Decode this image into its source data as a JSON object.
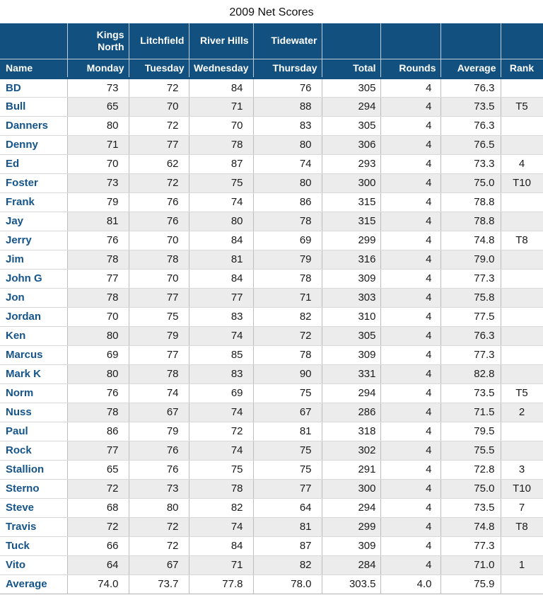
{
  "colors": {
    "header_bg": "#11507f",
    "header_text": "#ffffff",
    "name_text": "#14548a",
    "stripe": "#ececec",
    "grid_line": "#bcbcbc",
    "row_line": "#d8d8d8",
    "title_text": "#111111"
  },
  "chart_data": {
    "type": "table",
    "title": "2009 Net Scores",
    "course_header": [
      "",
      "Kings North",
      "Litchfield",
      "River Hills",
      "Tidewater",
      "",
      "",
      "",
      ""
    ],
    "columns": [
      "Name",
      "Monday",
      "Tuesday",
      "Wednesday",
      "Thursday",
      "Total",
      "Rounds",
      "Average",
      "Rank"
    ],
    "rows": [
      {
        "name": "BD",
        "scores": [
          73,
          72,
          84,
          76
        ],
        "total": 305,
        "rounds": 4,
        "average": "76.3",
        "rank": ""
      },
      {
        "name": "Bull",
        "scores": [
          65,
          70,
          71,
          88
        ],
        "total": 294,
        "rounds": 4,
        "average": "73.5",
        "rank": "T5"
      },
      {
        "name": "Danners",
        "scores": [
          80,
          72,
          70,
          83
        ],
        "total": 305,
        "rounds": 4,
        "average": "76.3",
        "rank": ""
      },
      {
        "name": "Denny",
        "scores": [
          71,
          77,
          78,
          80
        ],
        "total": 306,
        "rounds": 4,
        "average": "76.5",
        "rank": ""
      },
      {
        "name": "Ed",
        "scores": [
          70,
          62,
          87,
          74
        ],
        "total": 293,
        "rounds": 4,
        "average": "73.3",
        "rank": "4"
      },
      {
        "name": "Foster",
        "scores": [
          73,
          72,
          75,
          80
        ],
        "total": 300,
        "rounds": 4,
        "average": "75.0",
        "rank": "T10"
      },
      {
        "name": "Frank",
        "scores": [
          79,
          76,
          74,
          86
        ],
        "total": 315,
        "rounds": 4,
        "average": "78.8",
        "rank": ""
      },
      {
        "name": "Jay",
        "scores": [
          81,
          76,
          80,
          78
        ],
        "total": 315,
        "rounds": 4,
        "average": "78.8",
        "rank": ""
      },
      {
        "name": "Jerry",
        "scores": [
          76,
          70,
          84,
          69
        ],
        "total": 299,
        "rounds": 4,
        "average": "74.8",
        "rank": "T8"
      },
      {
        "name": "Jim",
        "scores": [
          78,
          78,
          81,
          79
        ],
        "total": 316,
        "rounds": 4,
        "average": "79.0",
        "rank": ""
      },
      {
        "name": "John G",
        "scores": [
          77,
          70,
          84,
          78
        ],
        "total": 309,
        "rounds": 4,
        "average": "77.3",
        "rank": ""
      },
      {
        "name": "Jon",
        "scores": [
          78,
          77,
          77,
          71
        ],
        "total": 303,
        "rounds": 4,
        "average": "75.8",
        "rank": ""
      },
      {
        "name": "Jordan",
        "scores": [
          70,
          75,
          83,
          82
        ],
        "total": 310,
        "rounds": 4,
        "average": "77.5",
        "rank": ""
      },
      {
        "name": "Ken",
        "scores": [
          80,
          79,
          74,
          72
        ],
        "total": 305,
        "rounds": 4,
        "average": "76.3",
        "rank": ""
      },
      {
        "name": "Marcus",
        "scores": [
          69,
          77,
          85,
          78
        ],
        "total": 309,
        "rounds": 4,
        "average": "77.3",
        "rank": ""
      },
      {
        "name": "Mark K",
        "scores": [
          80,
          78,
          83,
          90
        ],
        "total": 331,
        "rounds": 4,
        "average": "82.8",
        "rank": ""
      },
      {
        "name": "Norm",
        "scores": [
          76,
          74,
          69,
          75
        ],
        "total": 294,
        "rounds": 4,
        "average": "73.5",
        "rank": "T5"
      },
      {
        "name": "Nuss",
        "scores": [
          78,
          67,
          74,
          67
        ],
        "total": 286,
        "rounds": 4,
        "average": "71.5",
        "rank": "2"
      },
      {
        "name": "Paul",
        "scores": [
          86,
          79,
          72,
          81
        ],
        "total": 318,
        "rounds": 4,
        "average": "79.5",
        "rank": ""
      },
      {
        "name": "Rock",
        "scores": [
          77,
          76,
          74,
          75
        ],
        "total": 302,
        "rounds": 4,
        "average": "75.5",
        "rank": ""
      },
      {
        "name": "Stallion",
        "scores": [
          65,
          76,
          75,
          75
        ],
        "total": 291,
        "rounds": 4,
        "average": "72.8",
        "rank": "3"
      },
      {
        "name": "Sterno",
        "scores": [
          72,
          73,
          78,
          77
        ],
        "total": 300,
        "rounds": 4,
        "average": "75.0",
        "rank": "T10"
      },
      {
        "name": "Steve",
        "scores": [
          68,
          80,
          82,
          64
        ],
        "total": 294,
        "rounds": 4,
        "average": "73.5",
        "rank": "7"
      },
      {
        "name": "Travis",
        "scores": [
          72,
          72,
          74,
          81
        ],
        "total": 299,
        "rounds": 4,
        "average": "74.8",
        "rank": "T8"
      },
      {
        "name": "Tuck",
        "scores": [
          66,
          72,
          84,
          87
        ],
        "total": 309,
        "rounds": 4,
        "average": "77.3",
        "rank": ""
      },
      {
        "name": "Vito",
        "scores": [
          64,
          67,
          71,
          82
        ],
        "total": 284,
        "rounds": 4,
        "average": "71.0",
        "rank": "1"
      }
    ],
    "footer": {
      "name": "Average",
      "scores": [
        "74.0",
        "73.7",
        "77.8",
        "78.0"
      ],
      "total": "303.5",
      "rounds": "4.0",
      "average": "75.9",
      "rank": ""
    }
  }
}
